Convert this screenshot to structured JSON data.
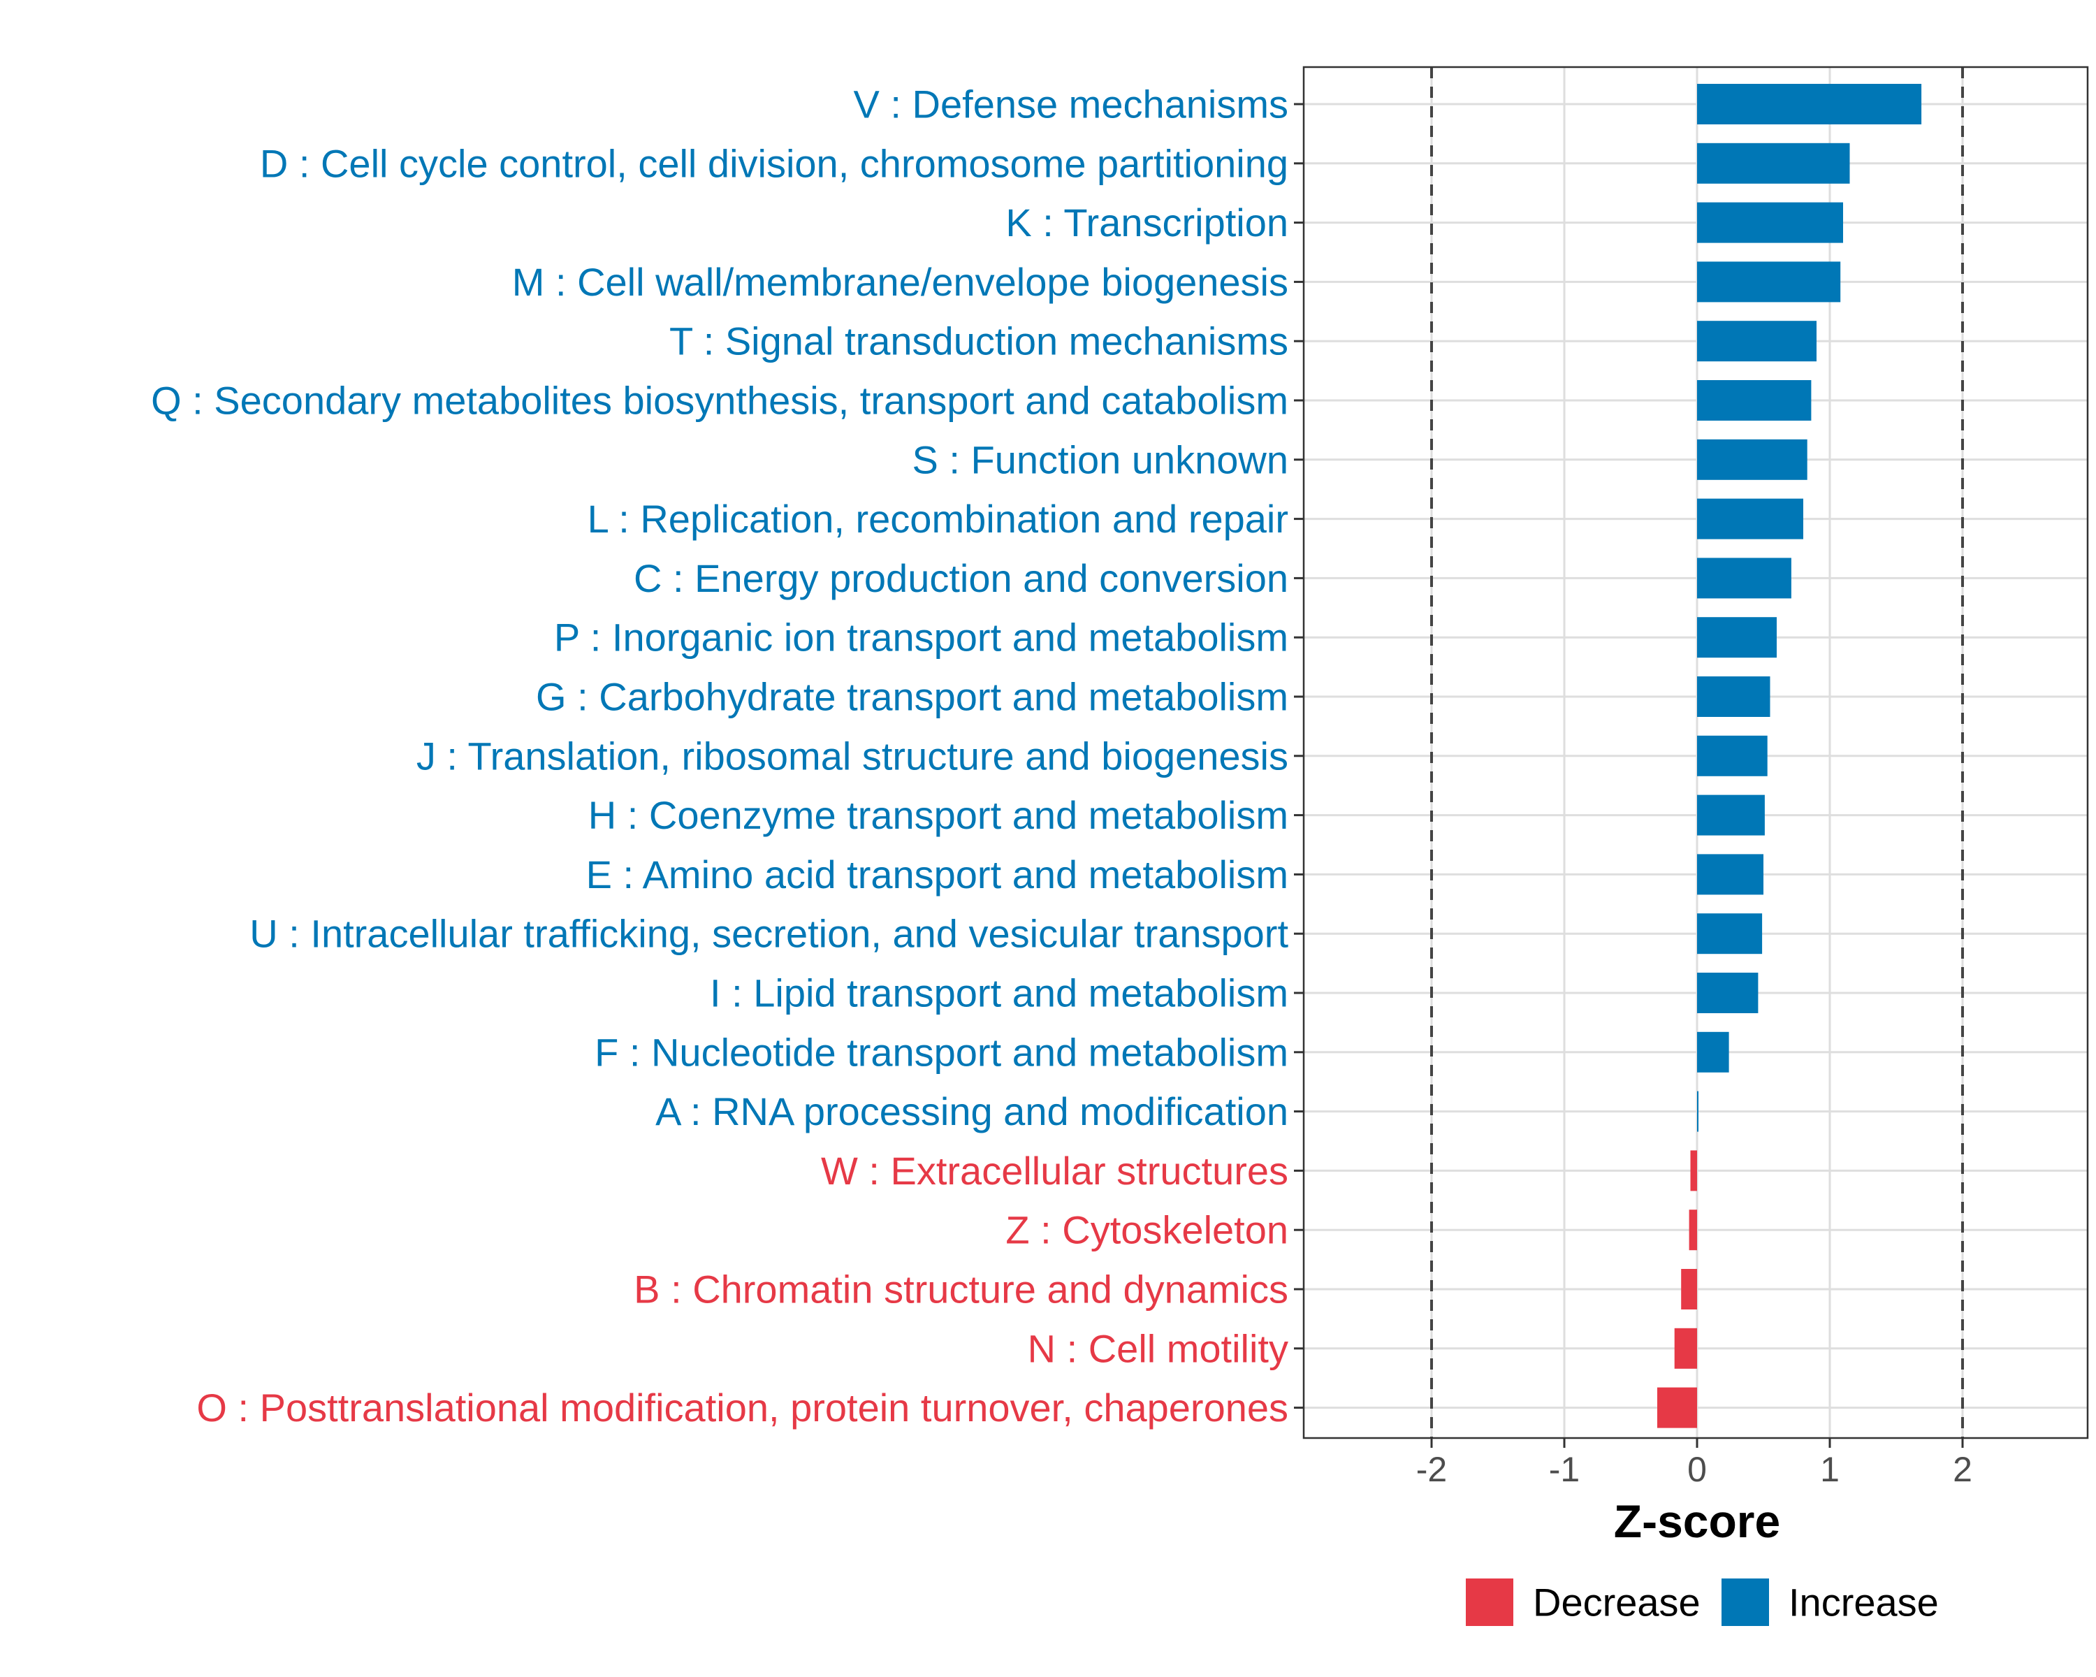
{
  "chart_data": {
    "type": "bar",
    "orientation": "horizontal",
    "xlabel": "Z-score",
    "xlim": [
      -3,
      3
    ],
    "xticks": [
      -2,
      -1,
      0,
      1,
      2
    ],
    "xtick_labels": [
      "-2",
      "-1",
      "0",
      "1",
      "2"
    ],
    "reference_lines": [
      -2,
      2
    ],
    "grid": true,
    "legend_position": "bottom",
    "colors": {
      "Decrease": "#e63946",
      "Increase": "#0077b6"
    },
    "legend": [
      {
        "name": "Decrease",
        "color": "#e63946"
      },
      {
        "name": "Increase",
        "color": "#0077b6"
      }
    ],
    "categories": [
      "V : Defense mechanisms",
      "D : Cell cycle control, cell division, chromosome partitioning",
      "K : Transcription",
      "M : Cell wall/membrane/envelope biogenesis",
      "T : Signal transduction mechanisms",
      "Q : Secondary metabolites biosynthesis, transport and catabolism",
      "S : Function unknown",
      "L : Replication, recombination and repair",
      "C : Energy production and conversion",
      "P : Inorganic ion transport and metabolism",
      "G : Carbohydrate transport and metabolism",
      "J : Translation, ribosomal structure and biogenesis",
      "H : Coenzyme transport and metabolism",
      "E : Amino acid transport and metabolism",
      "U : Intracellular trafficking, secretion, and vesicular transport",
      "I : Lipid transport and metabolism",
      "F : Nucleotide transport and metabolism",
      "A : RNA processing and modification",
      "W : Extracellular structures",
      "Z : Cytoskeleton",
      "B : Chromatin structure and dynamics",
      "N : Cell motility",
      "O : Posttranslational modification, protein turnover, chaperones"
    ],
    "values": [
      1.69,
      1.15,
      1.1,
      1.08,
      0.9,
      0.86,
      0.83,
      0.8,
      0.71,
      0.6,
      0.55,
      0.53,
      0.51,
      0.5,
      0.49,
      0.46,
      0.24,
      0.01,
      -0.05,
      -0.06,
      -0.12,
      -0.17,
      -0.3
    ],
    "direction": [
      "Increase",
      "Increase",
      "Increase",
      "Increase",
      "Increase",
      "Increase",
      "Increase",
      "Increase",
      "Increase",
      "Increase",
      "Increase",
      "Increase",
      "Increase",
      "Increase",
      "Increase",
      "Increase",
      "Increase",
      "Increase",
      "Decrease",
      "Decrease",
      "Decrease",
      "Decrease",
      "Decrease"
    ]
  }
}
